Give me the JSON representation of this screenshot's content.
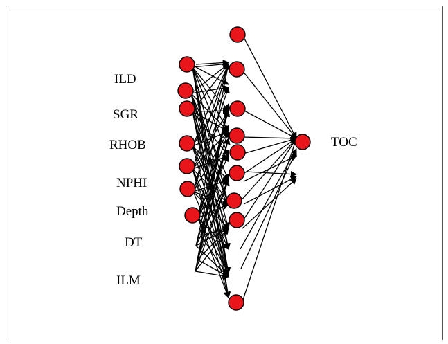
{
  "diagram": {
    "type": "neural-network",
    "input_labels": [
      "ILD",
      "SGR",
      "RHOB",
      "NPHI",
      "Depth",
      "DT",
      "ILM"
    ],
    "output_label": "TOC",
    "node_color": "#e8161b",
    "edge_color": "#000000"
  }
}
